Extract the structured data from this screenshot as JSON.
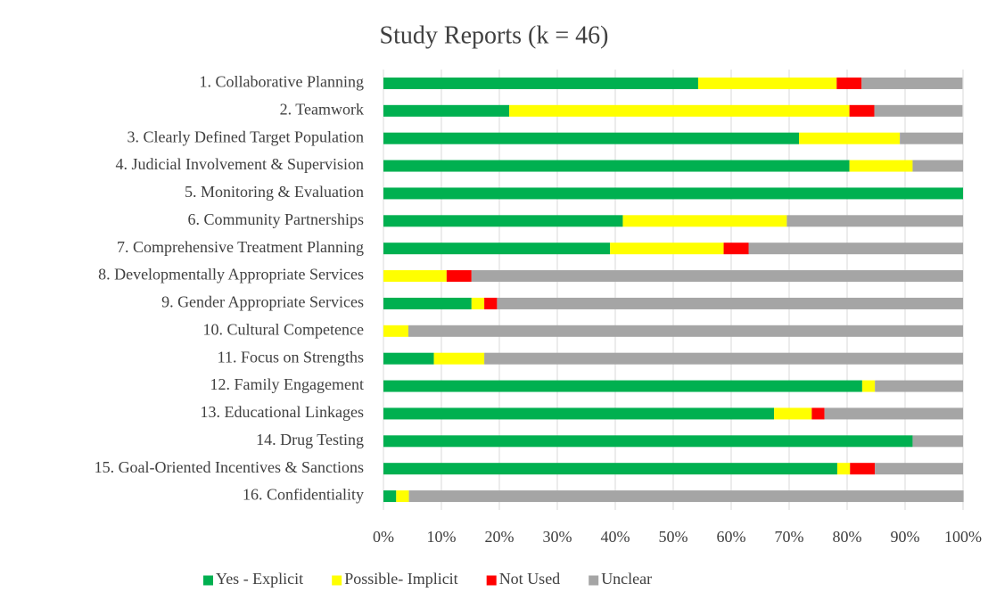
{
  "chart_data": {
    "type": "stacked-bar-horizontal",
    "title": "Study Reports (k = 46)",
    "categories": [
      "1. Collaborative Planning",
      "2. Teamwork",
      "3. Clearly Defined Target Population",
      "4. Judicial Involvement & Supervision",
      "5. Monitoring & Evaluation",
      "6. Community Partnerships",
      "7. Comprehensive Treatment Planning",
      "8. Developmentally Appropriate Services",
      "9. Gender Appropriate Services",
      "10. Cultural Competence",
      "11. Focus on Strengths",
      "12. Family Engagement",
      "13. Educational Linkages",
      "14. Drug Testing",
      "15. Goal-Oriented Incentives & Sanctions",
      "16. Confidentiality"
    ],
    "series": [
      {
        "name": "Yes - Explicit",
        "color": "#00b050",
        "values": [
          54.3,
          21.7,
          71.7,
          80.4,
          100,
          41.3,
          39.1,
          0,
          15.2,
          0,
          8.7,
          82.6,
          67.4,
          91.3,
          78.3,
          2.2
        ]
      },
      {
        "name": "Possible- Implicit",
        "color": "#ffff00",
        "values": [
          23.9,
          58.7,
          17.4,
          10.9,
          0,
          28.3,
          19.6,
          10.9,
          2.2,
          4.3,
          8.7,
          2.2,
          6.5,
          0,
          2.2,
          2.2
        ]
      },
      {
        "name": "Not Used",
        "color": "#ff0000",
        "values": [
          4.3,
          4.3,
          0,
          0,
          0,
          0,
          4.3,
          4.3,
          2.2,
          0,
          0,
          0,
          2.2,
          0,
          4.3,
          0
        ]
      },
      {
        "name": "Unclear",
        "color": "#a5a5a5",
        "values": [
          17.4,
          15.2,
          10.9,
          8.7,
          0,
          30.4,
          37.0,
          84.8,
          80.4,
          95.7,
          82.6,
          15.2,
          23.9,
          8.7,
          15.2,
          95.7
        ]
      }
    ],
    "xlim": [
      0,
      100
    ],
    "xticks": [
      {
        "value": 0,
        "label": "0%"
      },
      {
        "value": 10,
        "label": "10%"
      },
      {
        "value": 20,
        "label": "20%"
      },
      {
        "value": 30,
        "label": "30%"
      },
      {
        "value": 40,
        "label": "40%"
      },
      {
        "value": 50,
        "label": "50%"
      },
      {
        "value": 60,
        "label": "60%"
      },
      {
        "value": 70,
        "label": "70%"
      },
      {
        "value": 80,
        "label": "80%"
      },
      {
        "value": 90,
        "label": "90%"
      },
      {
        "value": 100,
        "label": "100%"
      }
    ],
    "grid": true,
    "legend": "bottom"
  }
}
